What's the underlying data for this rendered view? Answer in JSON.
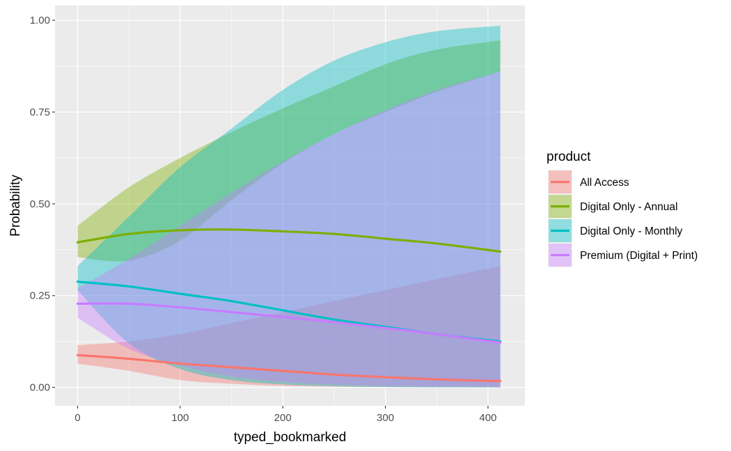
{
  "chart_data": {
    "type": "line",
    "xlabel": "typed_bookmarked",
    "ylabel": "Probability",
    "xlim": [
      -22,
      436
    ],
    "ylim": [
      -0.05,
      1.04
    ],
    "xticks": [
      0,
      100,
      200,
      300,
      400
    ],
    "xtick_labels": [
      "0",
      "100",
      "200",
      "300",
      "400"
    ],
    "yticks": [
      0,
      0.25,
      0.5,
      0.75,
      1.0
    ],
    "ytick_labels": [
      "0.00",
      "0.25",
      "0.50",
      "0.75",
      "1.00"
    ],
    "grid": true,
    "legend": {
      "title": "product",
      "position": "right"
    },
    "x": [
      0,
      50,
      100,
      150,
      200,
      250,
      300,
      350,
      412
    ],
    "series": [
      {
        "name": "All Access",
        "color": "#F8766D",
        "values": [
          0.088,
          0.078,
          0.065,
          0.055,
          0.045,
          0.035,
          0.028,
          0.022,
          0.017
        ],
        "lower": [
          0.065,
          0.045,
          0.02,
          0.01,
          0.004,
          0.002,
          0.001,
          0.001,
          0.0
        ],
        "upper": [
          0.115,
          0.125,
          0.145,
          0.175,
          0.205,
          0.235,
          0.265,
          0.295,
          0.33
        ]
      },
      {
        "name": "Digital Only - Annual",
        "color": "#7CAE00",
        "values": [
          0.395,
          0.418,
          0.428,
          0.43,
          0.425,
          0.418,
          0.405,
          0.392,
          0.37
        ],
        "lower": [
          0.355,
          0.345,
          0.4,
          0.51,
          0.61,
          0.69,
          0.75,
          0.805,
          0.86
        ],
        "upper": [
          0.44,
          0.545,
          0.625,
          0.695,
          0.76,
          0.82,
          0.88,
          0.92,
          0.945
        ]
      },
      {
        "name": "Digital Only - Monthly",
        "color": "#00BFC4",
        "values": [
          0.288,
          0.275,
          0.255,
          0.235,
          0.21,
          0.185,
          0.165,
          0.145,
          0.125
        ],
        "lower": [
          0.265,
          0.12,
          0.05,
          0.02,
          0.008,
          0.003,
          0.001,
          0.0,
          0.0
        ],
        "upper": [
          0.33,
          0.465,
          0.6,
          0.705,
          0.81,
          0.89,
          0.94,
          0.97,
          0.985
        ]
      },
      {
        "name": "Premium (Digital + Print)",
        "color": "#C77CFF",
        "values": [
          0.228,
          0.228,
          0.218,
          0.205,
          0.192,
          0.178,
          0.162,
          0.145,
          0.122
        ],
        "lower": [
          0.19,
          0.105,
          0.06,
          0.03,
          0.015,
          0.008,
          0.004,
          0.002,
          0.001
        ],
        "upper": [
          0.27,
          0.35,
          0.44,
          0.53,
          0.615,
          0.69,
          0.755,
          0.81,
          0.86
        ]
      }
    ]
  }
}
